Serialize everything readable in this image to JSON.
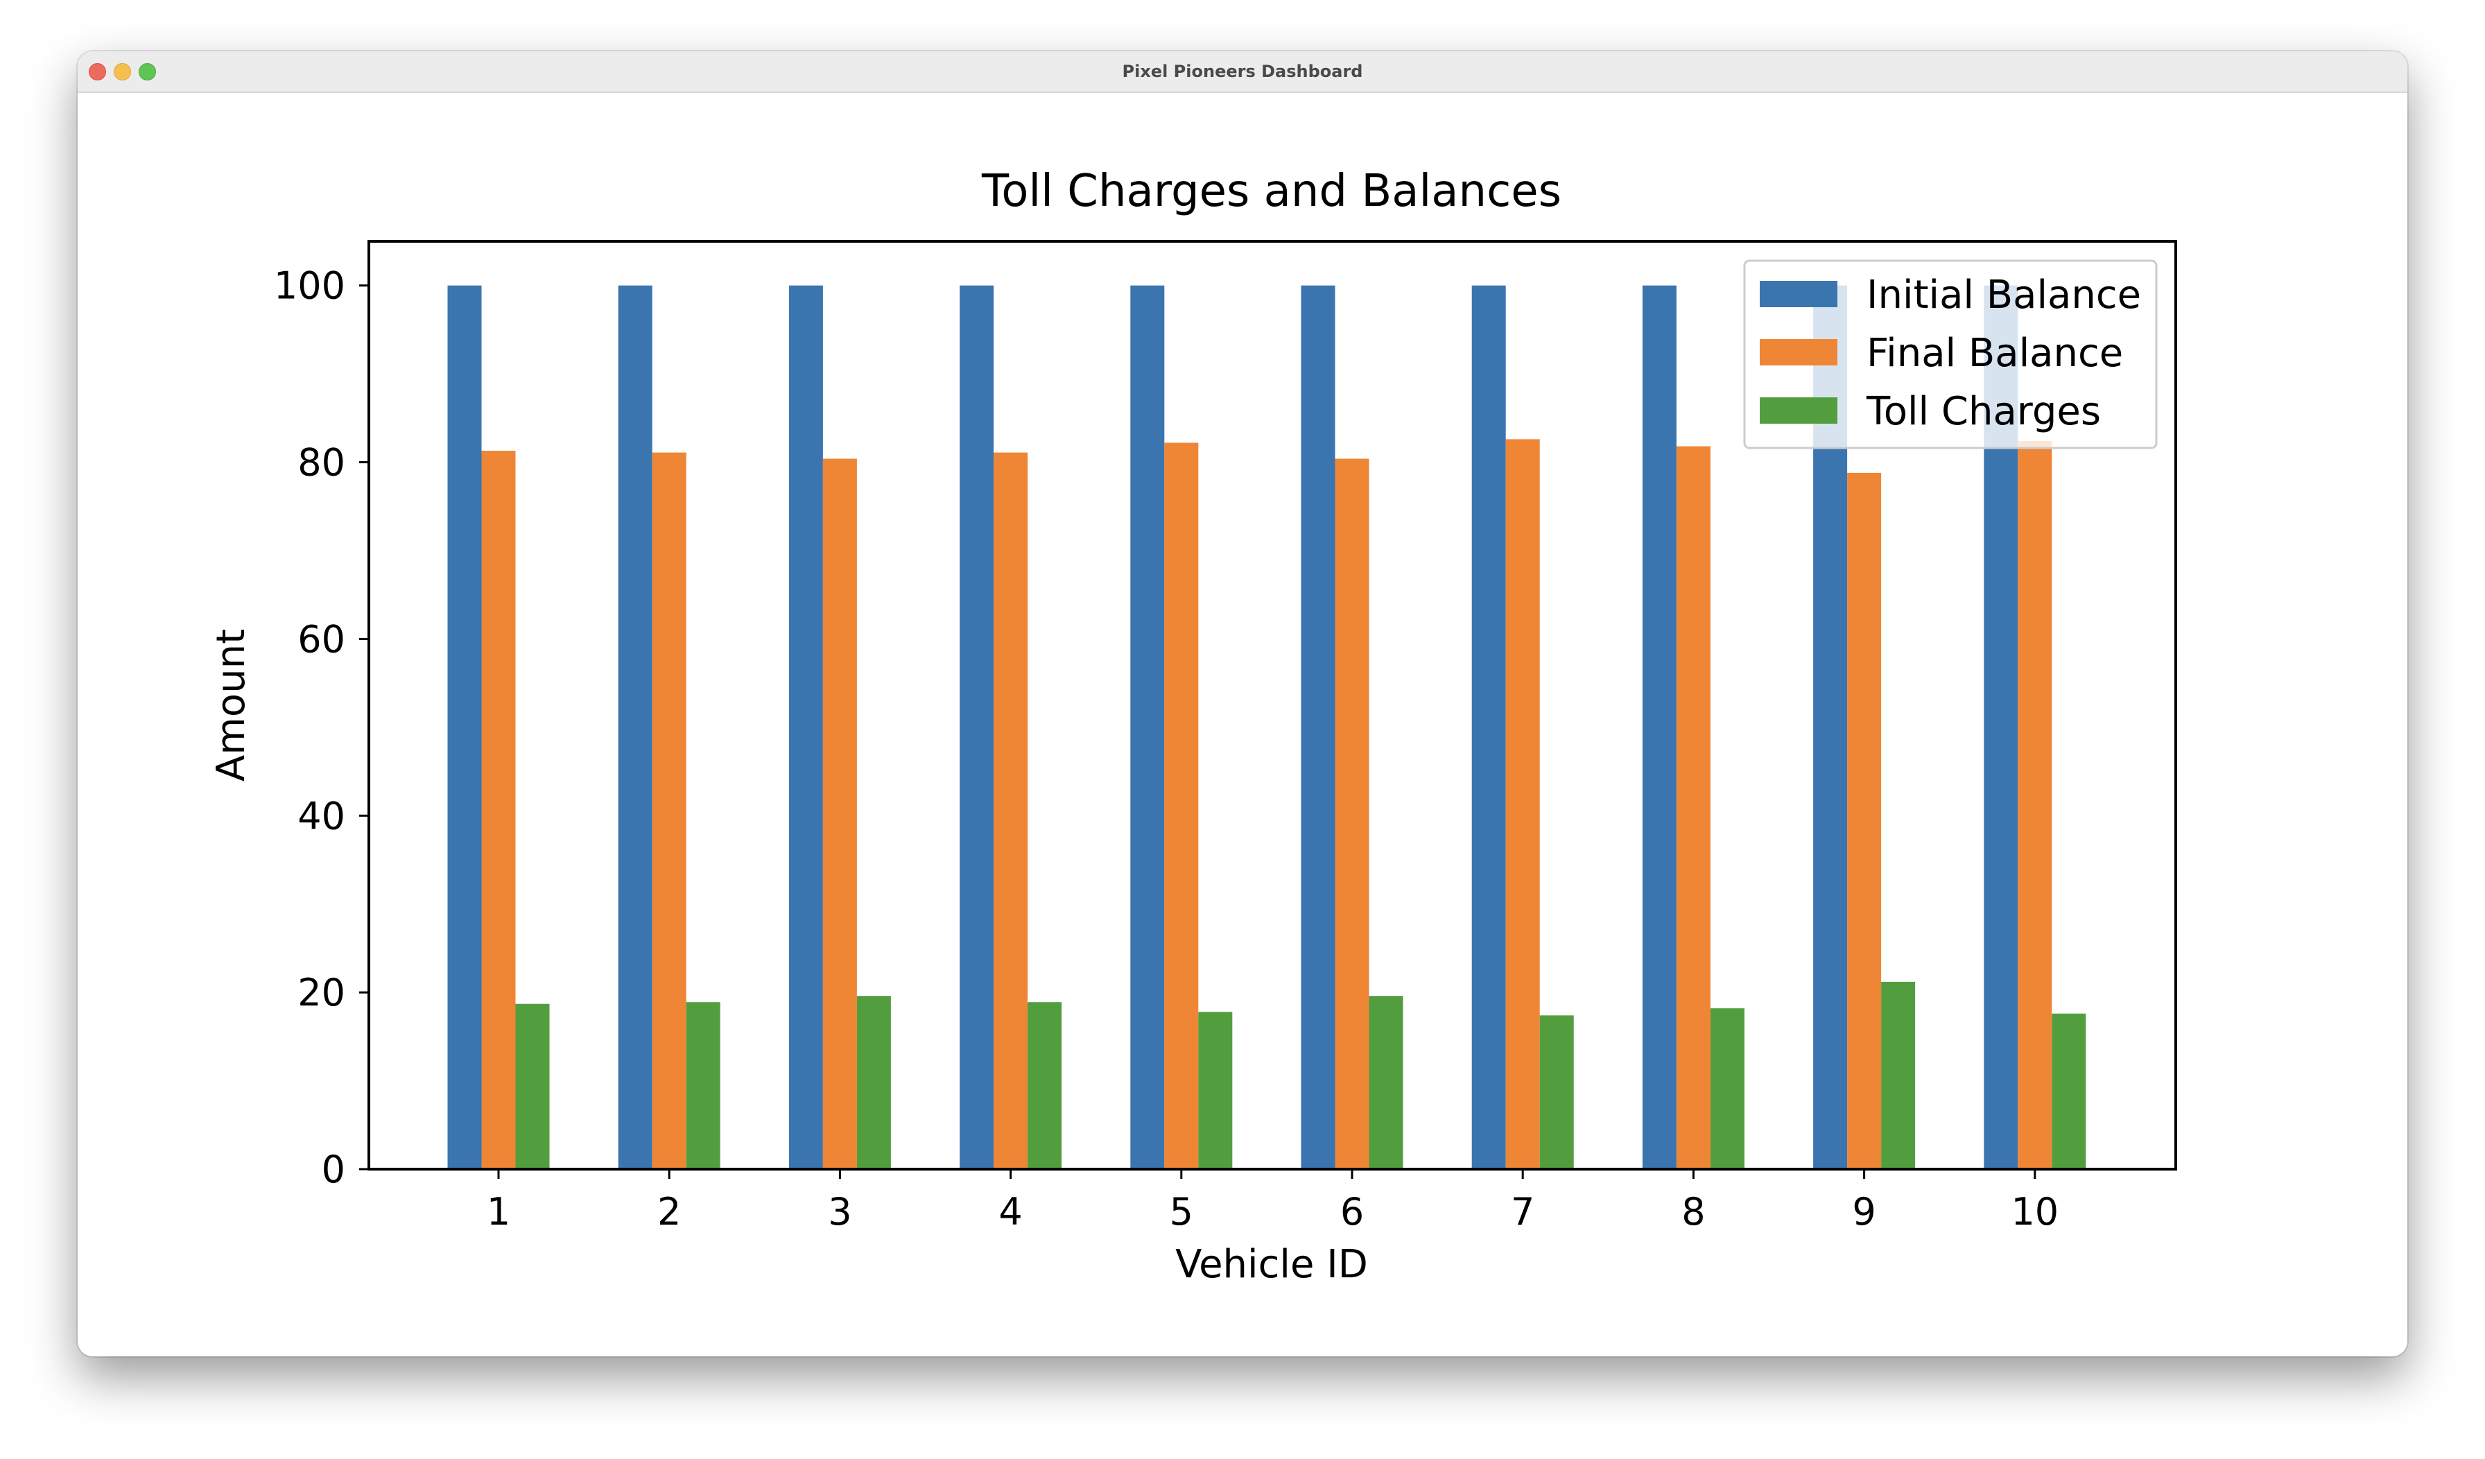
{
  "window": {
    "title": "Pixel Pioneers Dashboard"
  },
  "colors": {
    "initial_balance": "#3b75af",
    "final_balance": "#ef8636",
    "toll_charges": "#529e3e"
  },
  "chart_data": {
    "type": "bar",
    "title": "Toll Charges and Balances",
    "xlabel": "Vehicle ID",
    "ylabel": "Amount",
    "categories": [
      "1",
      "2",
      "3",
      "4",
      "5",
      "6",
      "7",
      "8",
      "9",
      "10"
    ],
    "series": [
      {
        "name": "Initial Balance",
        "color": "#3b75af",
        "values": [
          100,
          100,
          100,
          100,
          100,
          100,
          100,
          100,
          100,
          100
        ]
      },
      {
        "name": "Final Balance",
        "color": "#ef8636",
        "values": [
          81.3,
          81.1,
          80.4,
          81.1,
          82.2,
          80.4,
          82.6,
          81.8,
          78.8,
          82.4
        ]
      },
      {
        "name": "Toll Charges",
        "color": "#529e3e",
        "values": [
          18.7,
          18.9,
          19.6,
          18.9,
          17.8,
          19.6,
          17.4,
          18.2,
          21.2,
          17.6
        ]
      }
    ],
    "ylim": [
      0,
      105
    ],
    "yticks": [
      "0",
      "20",
      "40",
      "60",
      "80",
      "100"
    ],
    "grid": false,
    "legend": "top-right"
  }
}
